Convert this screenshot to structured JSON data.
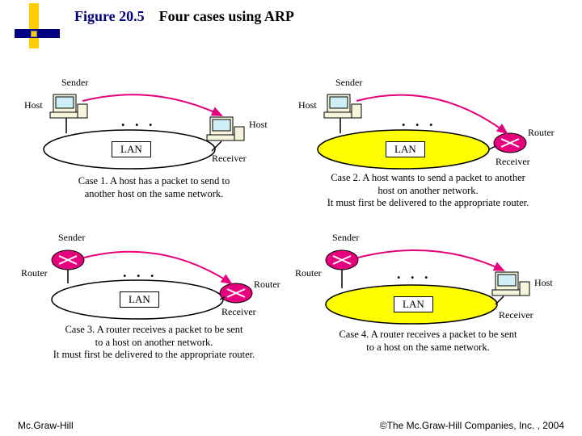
{
  "header": {
    "figure_label": "Figure 20.5",
    "figure_title": "Four cases using ARP",
    "bullet": {
      "yellow": "#ffcc00",
      "navy": "#000080"
    }
  },
  "colors": {
    "magenta": "#e6007e",
    "yellow_fill": "#ffff00",
    "white": "#ffffff",
    "black": "#000000",
    "gray": "#999999"
  },
  "labels": {
    "sender": "Sender",
    "host": "Host",
    "router": "Router",
    "receiver": "Receiver",
    "lan": "LAN",
    "dots": ". . ."
  },
  "cases": {
    "c1": {
      "lan_fill": "#ffffff",
      "caption": "Case 1.  A host has a packet to send to\nanother host on the same network."
    },
    "c2": {
      "lan_fill": "#ffff00",
      "caption": "Case 2.  A host wants to send a packet to another\nhost on another network.\nIt must first be delivered to the appropriate router."
    },
    "c3": {
      "lan_fill": "#ffffff",
      "caption": "Case 3.  A router receives a packet  to be sent\nto a host on another network.\nIt must first be delivered to the appropriate  router."
    },
    "c4": {
      "lan_fill": "#ffff00",
      "caption": "Case 4.  A router receives a packet to be sent\nto a host on the same network."
    }
  },
  "footer": {
    "left": "Mc.Graw-Hill",
    "right": "©The Mc.Graw-Hill Companies, Inc. , 2004"
  }
}
